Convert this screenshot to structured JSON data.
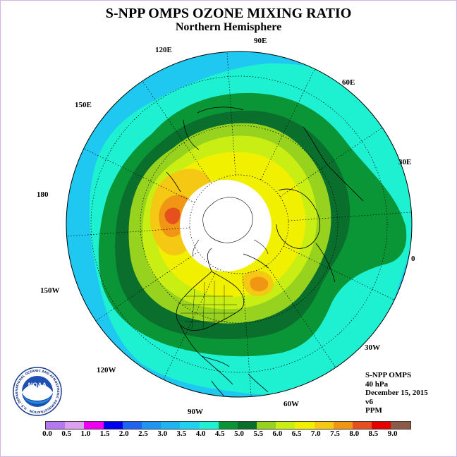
{
  "header": {
    "title": "S-NPP OMPS OZONE MIXING RATIO",
    "subtitle": "Northern Hemisphere"
  },
  "map": {
    "projection": "north-polar-stereographic",
    "longitude_labels": [
      "90E",
      "60E",
      "30E",
      "0",
      "30W",
      "60W",
      "90W",
      "120W",
      "150W",
      "180",
      "150E",
      "120E"
    ],
    "regions": [
      {
        "name": "outer-field",
        "ozone_ppm": 3.25,
        "color": "#1ec8f0"
      },
      {
        "name": "ring-3.5-4.0",
        "ozone_ppm": 3.75,
        "color": "#1ef0d2"
      },
      {
        "name": "ring-4.0-4.5",
        "ozone_ppm": 4.25,
        "color": "#0a9637"
      },
      {
        "name": "ring-4.5-5.0",
        "ozone_ppm": 4.75,
        "color": "#0a6e2d"
      },
      {
        "name": "ring-5.0-5.5",
        "ozone_ppm": 5.25,
        "color": "#96d21e"
      },
      {
        "name": "ring-5.5-6.0",
        "ozone_ppm": 5.75,
        "color": "#c8ee14"
      },
      {
        "name": "ring-6.0-6.5",
        "ozone_ppm": 6.25,
        "color": "#f0f000"
      },
      {
        "name": "patch-6.5-7.0",
        "ozone_ppm": 6.75,
        "color": "#f5c814"
      },
      {
        "name": "patch-7.0-7.5",
        "ozone_ppm": 7.25,
        "color": "#f09614"
      },
      {
        "name": "patch-7.5-8.0",
        "ozone_ppm": 7.75,
        "color": "#e6501e"
      },
      {
        "name": "polar-night-no-data",
        "ozone_ppm": null,
        "color": "#ffffff"
      }
    ]
  },
  "info": {
    "instrument": "S-NPP OMPS",
    "pressure": "40 hPa",
    "date": "December 15, 2015",
    "version": "v6",
    "units": "PPM"
  },
  "colorbar": {
    "ticks": [
      "0.0",
      "0.5",
      "1.0",
      "1.5",
      "2.0",
      "2.5",
      "3.0",
      "3.5",
      "4.0",
      "4.5",
      "5.0",
      "5.5",
      "6.0",
      "6.5",
      "7.0",
      "7.5",
      "8.0",
      "8.5",
      "9.0"
    ],
    "colors": [
      "#b478f0",
      "#dca0f0",
      "#f000f0",
      "#0000f0",
      "#1e64f0",
      "#1e96f0",
      "#1eb4f0",
      "#1ed2f0",
      "#1ef0d2",
      "#0a9637",
      "#0a6e2d",
      "#96d21e",
      "#c8ee14",
      "#f0f000",
      "#f5c814",
      "#f09614",
      "#e6501e",
      "#e60000",
      "#8c5a46"
    ]
  },
  "logo": {
    "text": "NOAA",
    "ring_text": "NATIONAL OCEANIC AND ATMOSPHERIC ADMINISTRATION · U.S. DEPARTMENT OF COMMERCE"
  }
}
